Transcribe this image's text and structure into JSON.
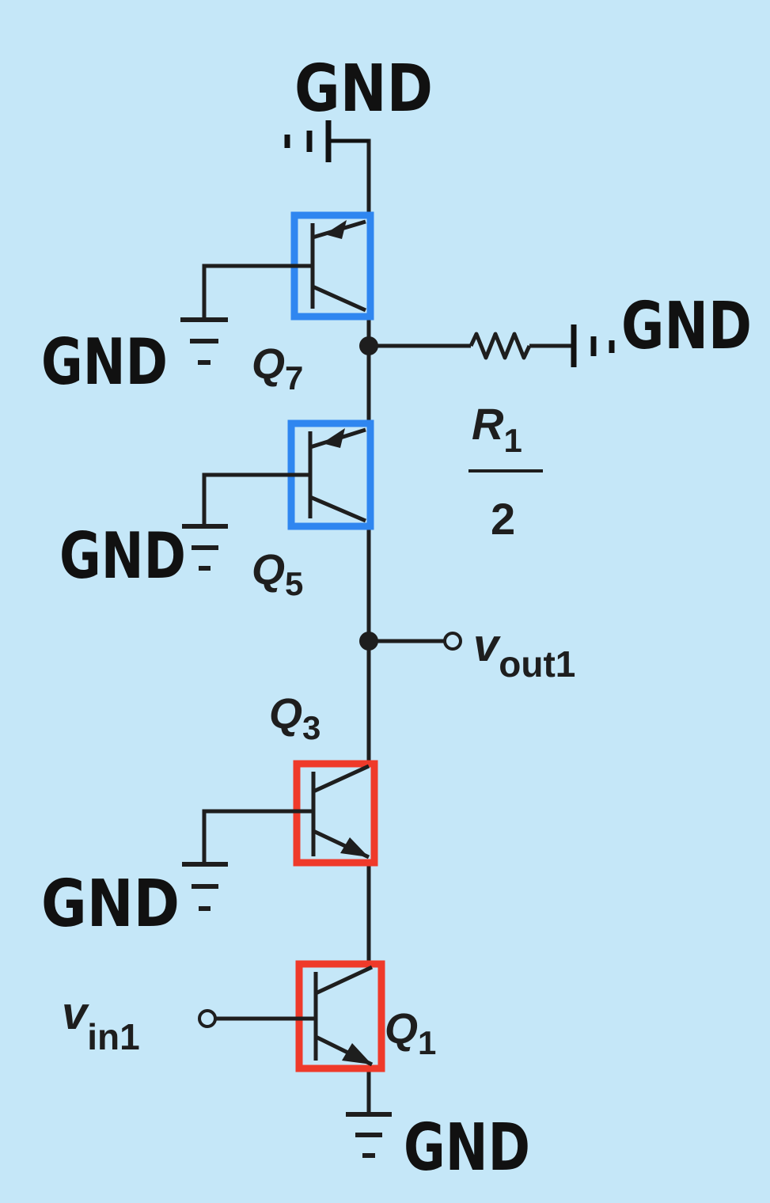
{
  "colors": {
    "background": "#c5e7f8",
    "wire": "#1e1e1e",
    "gnd_handwriting": "#111111",
    "pnp_highlight": "#2f86f0",
    "npn_highlight": "#ef3a2a"
  },
  "labels": {
    "gnd": "GND",
    "q7": {
      "base": "Q",
      "sub": "7"
    },
    "q5": {
      "base": "Q",
      "sub": "5"
    },
    "q3": {
      "base": "Q",
      "sub": "3"
    },
    "q1": {
      "base": "Q",
      "sub": "1"
    },
    "r1": {
      "base": "R",
      "sub": "1",
      "denominator": "2"
    },
    "vout1": {
      "base": "v",
      "sub": "out1"
    },
    "vin1": {
      "base": "v",
      "sub": "in1"
    }
  }
}
